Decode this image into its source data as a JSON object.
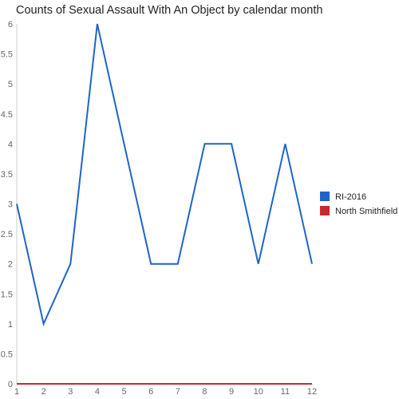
{
  "chart_data": {
    "type": "line",
    "title": "Counts of Sexual Assault With An Object by calendar month",
    "xlabel": "",
    "ylabel": "",
    "x": [
      1,
      2,
      3,
      4,
      5,
      6,
      7,
      8,
      9,
      10,
      11,
      12
    ],
    "x_tick_labels": [
      "1",
      "2",
      "3",
      "4",
      "5",
      "6",
      "7",
      "8",
      "9",
      "10",
      "11",
      "12"
    ],
    "y_tick_labels": [
      "0",
      "0.5",
      "1",
      "1.5",
      "2",
      "2.5",
      "3",
      "3.5",
      "4",
      "4.5",
      "5",
      "5.5",
      "6"
    ],
    "ylim": [
      0,
      6
    ],
    "xlim": [
      1,
      12
    ],
    "grid": false,
    "legend_position": "right",
    "series": [
      {
        "name": "RI-2016",
        "color": "#1f64c8",
        "values": [
          3,
          1,
          2,
          6,
          4,
          2,
          2,
          4,
          4,
          2,
          4,
          2
        ]
      },
      {
        "name": "North Smithfield",
        "color": "#c8282d",
        "values": [
          0,
          0,
          0,
          0,
          0,
          0,
          0,
          0,
          0,
          0,
          0,
          0
        ]
      }
    ]
  }
}
